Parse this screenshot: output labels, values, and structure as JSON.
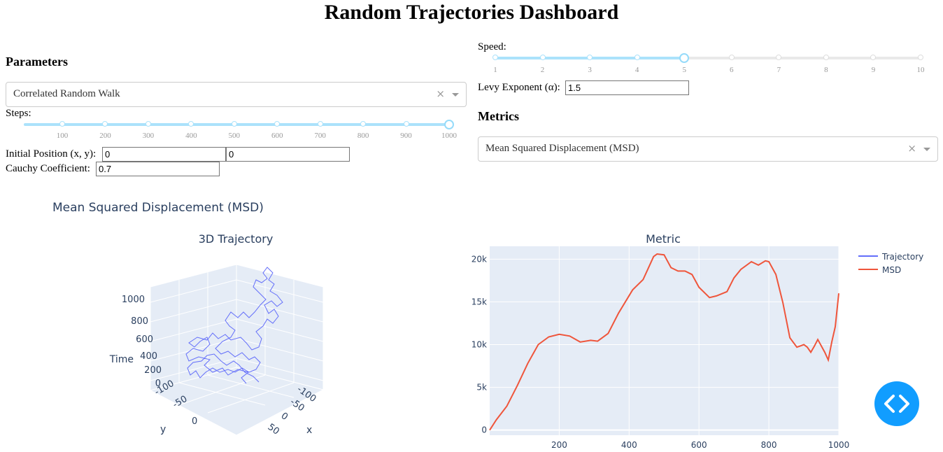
{
  "title": "Random Trajectories Dashboard",
  "parameters": {
    "heading": "Parameters",
    "walk_type": {
      "value": "Correlated Random Walk",
      "clear_glyph": "×"
    },
    "steps": {
      "label": "Steps:",
      "value": 1000,
      "marks": [
        "100",
        "200",
        "300",
        "400",
        "500",
        "600",
        "700",
        "800",
        "900",
        "1000"
      ]
    },
    "initial_position": {
      "label": "Initial Position (x, y):",
      "x": "0",
      "y": "0"
    },
    "cauchy": {
      "label": "Cauchy Coefficient:",
      "value": "0.7"
    },
    "speed": {
      "label": "Speed:",
      "value": 5,
      "marks": [
        "1",
        "2",
        "3",
        "4",
        "5",
        "6",
        "7",
        "8",
        "9",
        "10"
      ]
    },
    "levy": {
      "label": "Levy Exponent (α):",
      "value": "1.5"
    }
  },
  "metrics": {
    "heading": "Metrics",
    "metric_select": {
      "value": "Mean Squared Displacement (MSD)",
      "clear_glyph": "×"
    }
  },
  "figure": {
    "title": "Mean Squared Displacement (MSD)",
    "subplot_left_title": "3D Trajectory",
    "subplot_right_title": "Metric",
    "legend": [
      "Trajectory",
      "MSD"
    ],
    "colors": {
      "trajectory": "#636efa",
      "msd": "#ef553b",
      "plot_bg": "#e5ecf6",
      "accent": "#119dff"
    },
    "scene": {
      "z_title": "Time",
      "z_ticks": [
        "1000",
        "800",
        "600",
        "400",
        "200",
        "0"
      ],
      "x_title": "x",
      "x_ticks": [
        "-100",
        "-50",
        "0",
        "50"
      ],
      "y_title": "y",
      "y_ticks": [
        "-100",
        "-50",
        "0"
      ]
    }
  },
  "chart_data": {
    "type": "line",
    "title": "Metric",
    "series": [
      {
        "name": "MSD",
        "x": [
          1,
          20,
          50,
          80,
          110,
          140,
          170,
          200,
          230,
          260,
          290,
          310,
          340,
          370,
          410,
          440,
          470,
          480,
          500,
          520,
          540,
          560,
          580,
          600,
          630,
          650,
          680,
          700,
          720,
          750,
          770,
          790,
          800,
          820,
          840,
          860,
          880,
          900,
          910,
          920,
          930,
          940,
          960,
          970,
          980,
          990,
          1000
        ],
        "y": [
          0,
          1200,
          2800,
          5200,
          7800,
          10000,
          10900,
          11200,
          11000,
          10300,
          10500,
          10400,
          11300,
          13700,
          16400,
          17600,
          20300,
          20600,
          20500,
          19000,
          18600,
          18600,
          18200,
          16700,
          15500,
          15700,
          16200,
          17800,
          18800,
          19700,
          19300,
          19800,
          19700,
          18200,
          14900,
          10800,
          9700,
          10000,
          9700,
          9100,
          9800,
          10600,
          9100,
          8200,
          10300,
          12100,
          16000
        ]
      }
    ],
    "xlim": [
      1,
      1000
    ],
    "ylim": [
      -600,
      21500
    ],
    "x_ticks": [
      200,
      400,
      600,
      800,
      1000
    ],
    "y_ticks": [
      0,
      5000,
      10000,
      15000,
      20000
    ],
    "y_tick_labels": [
      "0",
      "5k",
      "10k",
      "15k",
      "20k"
    ]
  },
  "fab": {
    "icon": "code-brackets-icon"
  }
}
